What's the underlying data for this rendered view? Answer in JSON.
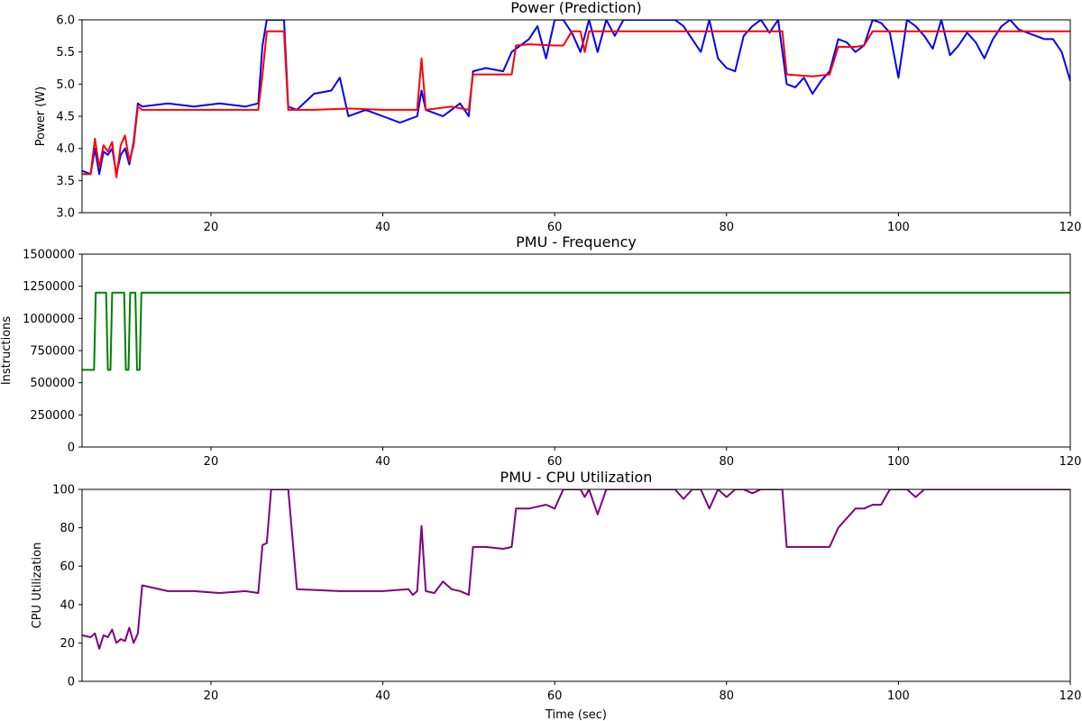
{
  "chart_data": [
    {
      "type": "line",
      "title": "Power (Prediction)",
      "xlabel": "",
      "ylabel": "Power (W)",
      "xlim": [
        5,
        120
      ],
      "ylim": [
        3.0,
        6.0
      ],
      "xticks": [
        20,
        40,
        60,
        80,
        100,
        120
      ],
      "yticks": [
        3.0,
        3.5,
        4.0,
        4.5,
        5.0,
        5.5,
        6.0
      ],
      "ytick_labels": [
        "3.0",
        "3.5",
        "4.0",
        "4.5",
        "5.0",
        "5.5",
        "6.0"
      ],
      "series": [
        {
          "color": "#0000ff",
          "x": [
            5,
            6,
            6.5,
            7,
            7.5,
            8,
            8.5,
            9,
            9.5,
            10,
            10.5,
            11,
            11.5,
            12,
            15,
            18,
            21,
            24,
            25.5,
            26,
            26.5,
            27,
            28,
            28.5,
            29,
            30,
            32,
            34,
            35,
            36,
            38,
            40,
            42,
            44,
            44.5,
            45,
            47,
            49,
            50,
            50.5,
            52,
            54,
            55,
            57,
            58,
            59,
            60,
            61,
            62,
            63,
            64,
            65,
            66,
            67,
            68,
            70,
            72,
            74,
            75,
            76,
            77,
            78,
            79,
            80,
            81,
            82,
            83,
            84,
            85,
            86,
            87,
            88,
            89,
            90,
            91,
            92,
            93,
            94,
            95,
            96,
            97,
            98,
            99,
            100,
            101,
            102,
            103,
            104,
            105,
            106,
            107,
            108,
            109,
            110,
            111,
            112,
            113,
            114,
            115,
            116,
            117,
            118,
            119,
            120
          ],
          "y": [
            3.65,
            3.6,
            4.0,
            3.6,
            3.95,
            3.9,
            4.0,
            3.6,
            3.9,
            4.0,
            3.75,
            4.1,
            4.7,
            4.65,
            4.7,
            4.65,
            4.7,
            4.65,
            4.7,
            5.6,
            6.0,
            6.0,
            6.0,
            6.0,
            4.65,
            4.6,
            4.85,
            4.9,
            5.1,
            4.5,
            4.6,
            4.5,
            4.4,
            4.5,
            4.9,
            4.6,
            4.5,
            4.7,
            4.5,
            5.2,
            5.25,
            5.2,
            5.5,
            5.7,
            5.9,
            5.4,
            6.0,
            6.0,
            5.8,
            5.5,
            6.0,
            5.5,
            6.0,
            5.75,
            6.0,
            6.0,
            6.0,
            6.0,
            5.9,
            5.7,
            5.5,
            6.0,
            5.4,
            5.25,
            5.2,
            5.75,
            5.9,
            6.0,
            5.8,
            6.0,
            5.0,
            4.95,
            5.1,
            4.85,
            5.05,
            5.2,
            5.7,
            5.65,
            5.5,
            5.6,
            6.0,
            5.95,
            5.8,
            5.1,
            6.0,
            5.9,
            5.75,
            5.55,
            6.0,
            5.45,
            5.6,
            5.8,
            5.65,
            5.4,
            5.7,
            5.9,
            6.0,
            5.85,
            5.8,
            5.75,
            5.7,
            5.7,
            5.5,
            5.05
          ]
        },
        {
          "color": "#ff0000",
          "x": [
            5,
            6,
            6.5,
            7,
            7.5,
            8,
            8.5,
            9,
            9.5,
            10,
            10.5,
            11,
            11.5,
            12,
            15,
            18,
            21,
            24,
            25.5,
            26,
            26.5,
            28,
            28.5,
            29,
            32,
            36,
            40,
            43,
            44,
            44.5,
            45,
            48,
            50,
            50.5,
            52,
            55,
            55.5,
            57,
            60,
            61,
            62,
            63,
            63.5,
            64,
            65,
            70,
            75,
            80,
            85,
            86.5,
            87,
            90,
            92,
            93,
            95,
            96,
            97,
            98,
            100,
            105,
            110,
            115,
            120
          ],
          "y": [
            3.6,
            3.6,
            4.15,
            3.7,
            4.05,
            3.95,
            4.1,
            3.55,
            4.05,
            4.2,
            3.8,
            4.05,
            4.65,
            4.6,
            4.6,
            4.6,
            4.6,
            4.6,
            4.6,
            5.15,
            5.82,
            5.82,
            5.82,
            4.6,
            4.6,
            4.62,
            4.6,
            4.6,
            4.6,
            5.4,
            4.6,
            4.65,
            4.6,
            5.15,
            5.15,
            5.15,
            5.6,
            5.62,
            5.6,
            5.6,
            5.82,
            5.82,
            5.5,
            5.82,
            5.82,
            5.82,
            5.82,
            5.82,
            5.82,
            5.82,
            5.15,
            5.12,
            5.15,
            5.58,
            5.58,
            5.6,
            5.82,
            5.82,
            5.82,
            5.82,
            5.82,
            5.82,
            5.82
          ]
        }
      ]
    },
    {
      "type": "line",
      "title": "PMU - Frequency",
      "xlabel": "",
      "ylabel": "Instructions",
      "xlim": [
        5,
        120
      ],
      "ylim": [
        0,
        1500000
      ],
      "xticks": [
        20,
        40,
        60,
        80,
        100,
        120
      ],
      "yticks": [
        0,
        250000,
        500000,
        750000,
        1000000,
        1250000,
        1500000
      ],
      "ytick_labels": [
        "0",
        "250000",
        "500000",
        "750000",
        "1000000",
        "1250000",
        "1500000"
      ],
      "series": [
        {
          "color": "#008000",
          "x": [
            5,
            6.4,
            6.6,
            7.8,
            8,
            8.3,
            8.5,
            9.9,
            10.1,
            10.4,
            10.6,
            11.2,
            11.4,
            11.7,
            11.9,
            120
          ],
          "y": [
            600000,
            600000,
            1200000,
            1200000,
            600000,
            600000,
            1200000,
            1200000,
            600000,
            600000,
            1200000,
            1200000,
            600000,
            600000,
            1200000,
            1200000
          ]
        }
      ]
    },
    {
      "type": "line",
      "title": "PMU - CPU Utilization",
      "xlabel": "Time (sec)",
      "ylabel": "CPU Utilization",
      "xlim": [
        5,
        120
      ],
      "ylim": [
        0,
        100
      ],
      "xticks": [
        20,
        40,
        60,
        80,
        100,
        120
      ],
      "yticks": [
        0,
        20,
        40,
        60,
        80,
        100
      ],
      "ytick_labels": [
        "0",
        "20",
        "40",
        "60",
        "80",
        "100"
      ],
      "series": [
        {
          "color": "#800080",
          "x": [
            5,
            6,
            6.5,
            7,
            7.5,
            8,
            8.5,
            9,
            9.5,
            10,
            10.5,
            11,
            11.5,
            12,
            15,
            18,
            21,
            24,
            25.5,
            26,
            26.5,
            27,
            28,
            28.5,
            29,
            30,
            35,
            40,
            43,
            43.5,
            44,
            44.5,
            45,
            46,
            47,
            48,
            49,
            50,
            50.5,
            52,
            54,
            55,
            55.5,
            57,
            59,
            60,
            61,
            62,
            63,
            63.5,
            64,
            65,
            66,
            67,
            68,
            70,
            72,
            74,
            75,
            76,
            77,
            78,
            79,
            80,
            81,
            82,
            83,
            84,
            85,
            86,
            86.5,
            87,
            90,
            92,
            93,
            95,
            96,
            97,
            98,
            99,
            100,
            101,
            102,
            103,
            104,
            105,
            120
          ],
          "y": [
            24,
            23,
            25,
            17,
            24,
            23,
            27,
            20,
            22,
            21,
            28,
            20,
            25,
            50,
            47,
            47,
            46,
            47,
            46,
            71,
            72,
            100,
            100,
            100,
            100,
            48,
            47,
            47,
            48,
            45,
            47,
            81,
            47,
            46,
            52,
            48,
            47,
            45,
            70,
            70,
            69,
            70,
            90,
            90,
            92,
            90,
            100,
            100,
            100,
            96,
            100,
            87,
            100,
            100,
            100,
            100,
            100,
            100,
            95,
            100,
            100,
            90,
            100,
            96,
            100,
            100,
            98,
            100,
            100,
            100,
            100,
            70,
            70,
            70,
            80,
            90,
            90,
            92,
            92,
            100,
            100,
            100,
            96,
            100,
            100,
            100,
            100
          ]
        }
      ]
    }
  ]
}
